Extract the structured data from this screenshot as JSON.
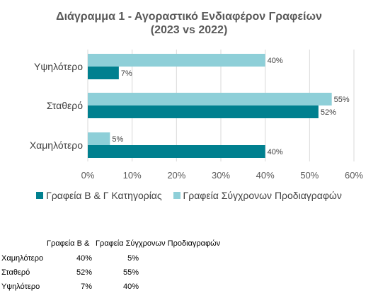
{
  "chart_data": {
    "type": "bar",
    "orientation": "horizontal",
    "title": "Διάγραμμα 1 - Αγοραστικό Ενδιαφέρον Γραφείων",
    "subtitle": "(2023 vs 2022)",
    "categories": [
      "Υψηλότερο",
      "Σταθερό",
      "Χαμηλότερο"
    ],
    "series": [
      {
        "name": "Γραφεία Β & Γ Κατηγορίας",
        "values": [
          7,
          52,
          40
        ],
        "color": "#00808f"
      },
      {
        "name": "Γραφεία Σύγχρονων Προδιαγραφών",
        "values": [
          40,
          55,
          5
        ],
        "color": "#8ecfd8"
      }
    ],
    "data_labels": {
      "Γραφεία Β & Γ Κατηγορίας": [
        "7%",
        "52%",
        "40%"
      ],
      "Γραφεία Σύγχρονων Προδιαγραφών": [
        "40%",
        "55%",
        "5%"
      ]
    },
    "xlim": [
      0,
      60
    ],
    "xticks": [
      "0%",
      "10%",
      "20%",
      "30%",
      "40%",
      "50%",
      "60%"
    ],
    "grid": true,
    "legend_position": "bottom"
  },
  "table": {
    "header": [
      "",
      "Γραφεία Β &",
      "Γραφεία Σύγχρονων Προδιαγραφών"
    ],
    "rows": [
      [
        "Χαμηλότερο",
        "40%",
        "5%"
      ],
      [
        "Σταθερό",
        "52%",
        "55%"
      ],
      [
        "Υψηλότερο",
        "7%",
        "40%"
      ]
    ]
  }
}
